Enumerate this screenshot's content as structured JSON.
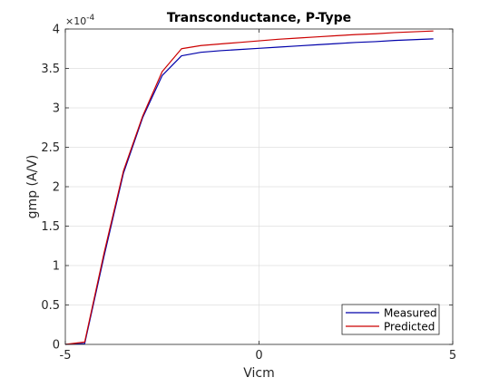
{
  "chart_data": {
    "type": "line",
    "title": "Transconductance, P-Type",
    "xlabel": "Vicm",
    "ylabel": "gmp (A/V)",
    "xlim": [
      -5,
      5
    ],
    "ylim": [
      0,
      4
    ],
    "y_scale_factor": "×10",
    "y_scale_exponent": "-4",
    "xticks": [
      -5,
      0,
      5
    ],
    "xtick_labels": [
      "-5",
      "0",
      "5"
    ],
    "yticks": [
      0,
      0.5,
      1,
      1.5,
      2,
      2.5,
      3,
      3.5,
      4
    ],
    "ytick_labels": [
      "0",
      "0.5",
      "1",
      "1.5",
      "2",
      "2.5",
      "3",
      "3.5",
      "4"
    ],
    "grid": true,
    "legend_position": "bottom-right",
    "series": [
      {
        "name": "Measured",
        "color": "#0000aa",
        "x": [
          -5,
          -4.5,
          -4,
          -3.5,
          -3,
          -2.5,
          -2,
          -1.5,
          -1,
          -0.5,
          0,
          0.5,
          1,
          1.5,
          2,
          2.5,
          3,
          3.5,
          4,
          4.5
        ],
        "y": [
          0,
          0.01,
          1.12,
          2.17,
          2.88,
          3.41,
          3.66,
          3.705,
          3.725,
          3.74,
          3.755,
          3.77,
          3.785,
          3.8,
          3.815,
          3.83,
          3.84,
          3.855,
          3.865,
          3.875
        ]
      },
      {
        "name": "Predicted",
        "color": "#cc0000",
        "x": [
          -5,
          -4.5,
          -4,
          -3.5,
          -3,
          -2.5,
          -2,
          -1.5,
          -1,
          -0.5,
          0,
          0.5,
          1,
          1.5,
          2,
          2.5,
          3,
          3.5,
          4,
          4.5
        ],
        "y": [
          0,
          0.03,
          1.16,
          2.2,
          2.9,
          3.46,
          3.75,
          3.79,
          3.81,
          3.83,
          3.85,
          3.87,
          3.885,
          3.9,
          3.915,
          3.93,
          3.94,
          3.955,
          3.965,
          3.975
        ]
      }
    ]
  }
}
